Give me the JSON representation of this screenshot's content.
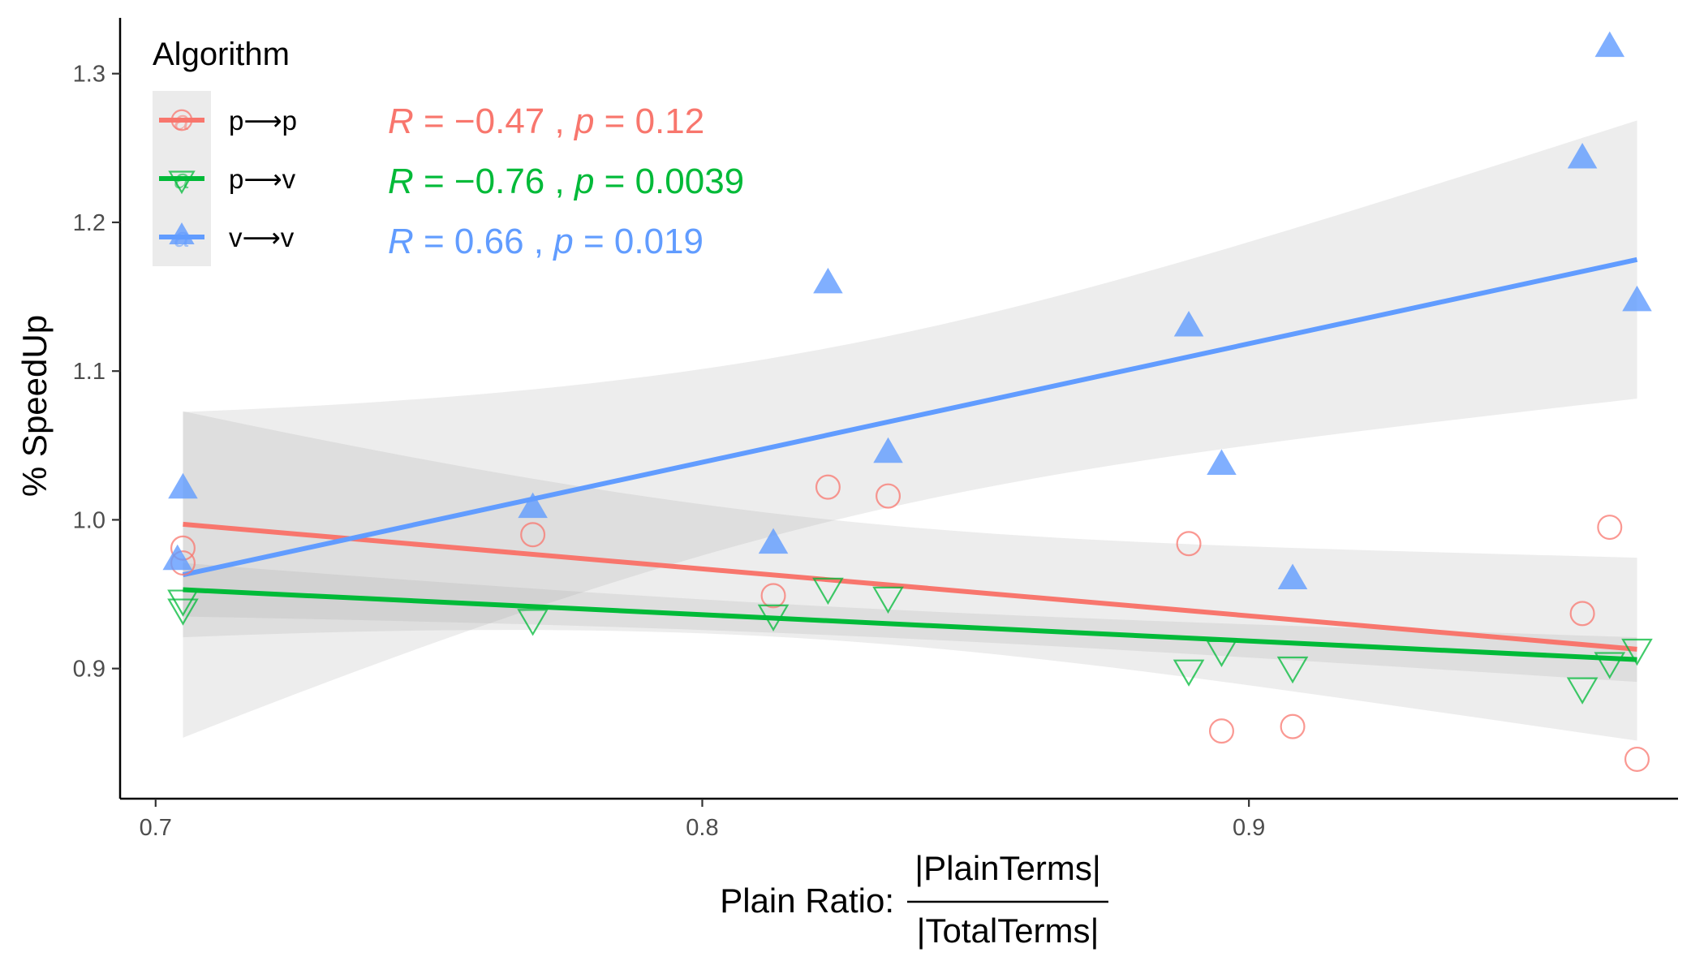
{
  "chart_data": {
    "type": "scatter",
    "x": [
      0.705,
      0.769,
      0.813,
      0.823,
      0.834,
      0.889,
      0.895,
      0.908,
      0.961,
      0.966,
      0.971
    ],
    "xlim": [
      0.6935,
      0.9785
    ],
    "ylim": [
      0.8125,
      1.3375
    ],
    "x_ticks": [
      {
        "value": 0.7,
        "label": "0.7"
      },
      {
        "value": 0.8,
        "label": "0.8"
      },
      {
        "value": 0.9,
        "label": "0.9"
      }
    ],
    "y_ticks": [
      {
        "value": 0.9,
        "label": "0.9"
      },
      {
        "value": 1.0,
        "label": "1.0"
      },
      {
        "value": 1.1,
        "label": "1.1"
      },
      {
        "value": 1.2,
        "label": "1.2"
      },
      {
        "value": 1.3,
        "label": "1.3"
      }
    ],
    "ylabel": "% SpeedUp",
    "xlabel": {
      "prefix": "Plain Ratio:",
      "numerator": "|PlainTerms|",
      "denominator": "|TotalTerms|"
    },
    "grid": false,
    "legend": {
      "title": "Algorithm",
      "position": "top-left",
      "key_glyph": "a"
    },
    "series": [
      {
        "name": "p⟶p",
        "color": "#F8766D",
        "marker": "open-circle",
        "points": [
          [
            0.705,
            0.971
          ],
          [
            0.705,
            0.981
          ],
          [
            0.769,
            0.99
          ],
          [
            0.813,
            0.949
          ],
          [
            0.823,
            1.022
          ],
          [
            0.834,
            1.016
          ],
          [
            0.889,
            0.984
          ],
          [
            0.895,
            0.858
          ],
          [
            0.908,
            0.861
          ],
          [
            0.961,
            0.937
          ],
          [
            0.966,
            0.995
          ],
          [
            0.971,
            0.839
          ]
        ],
        "fit": [
          [
            0.705,
            0.997
          ],
          [
            0.971,
            0.913
          ]
        ],
        "ci_lower": [
          [
            0.705,
            0.921
          ],
          [
            0.971,
            0.852
          ]
        ],
        "ci_upper": [
          [
            0.705,
            1.073
          ],
          [
            0.971,
            0.975
          ]
        ],
        "stat": {
          "R": "−0.47",
          "p": "0.12"
        }
      },
      {
        "name": "p⟶v",
        "color": "#00BA38",
        "marker": "open-triangle-down",
        "points": [
          [
            0.705,
            0.947
          ],
          [
            0.705,
            0.941
          ],
          [
            0.769,
            0.934
          ],
          [
            0.813,
            0.937
          ],
          [
            0.823,
            0.955
          ],
          [
            0.834,
            0.949
          ],
          [
            0.889,
            0.9
          ],
          [
            0.895,
            0.913
          ],
          [
            0.908,
            0.902
          ],
          [
            0.961,
            0.888
          ],
          [
            0.966,
            0.905
          ],
          [
            0.971,
            0.914
          ]
        ],
        "fit": [
          [
            0.705,
            0.953
          ],
          [
            0.971,
            0.906
          ]
        ],
        "ci_lower": [
          [
            0.705,
            0.935
          ],
          [
            0.971,
            0.891
          ]
        ],
        "ci_upper": [
          [
            0.705,
            0.971
          ],
          [
            0.971,
            0.921
          ]
        ],
        "stat": {
          "R": "−0.76",
          "p": "0.0039"
        }
      },
      {
        "name": "v⟶v",
        "color": "#619CFF",
        "marker": "filled-triangle-up",
        "points": [
          [
            0.704,
            0.972
          ],
          [
            0.705,
            1.02
          ],
          [
            0.769,
            1.007
          ],
          [
            0.813,
            0.983
          ],
          [
            0.823,
            1.158
          ],
          [
            0.834,
            1.044
          ],
          [
            0.889,
            1.129
          ],
          [
            0.895,
            1.036
          ],
          [
            0.908,
            0.959
          ],
          [
            0.961,
            1.242
          ],
          [
            0.966,
            1.317
          ],
          [
            0.971,
            1.146
          ]
        ],
        "fit": [
          [
            0.705,
            0.963
          ],
          [
            0.971,
            1.175
          ]
        ],
        "ci_lower": [
          [
            0.705,
            0.853
          ],
          [
            0.971,
            1.081
          ]
        ],
        "ci_upper": [
          [
            0.705,
            1.072
          ],
          [
            0.971,
            1.268
          ]
        ],
        "stat": {
          "R": "0.66",
          "p": "0.019"
        }
      }
    ]
  },
  "stat_labels": {
    "R": "R",
    "p": "p",
    "equals": "=",
    "comma": ","
  }
}
